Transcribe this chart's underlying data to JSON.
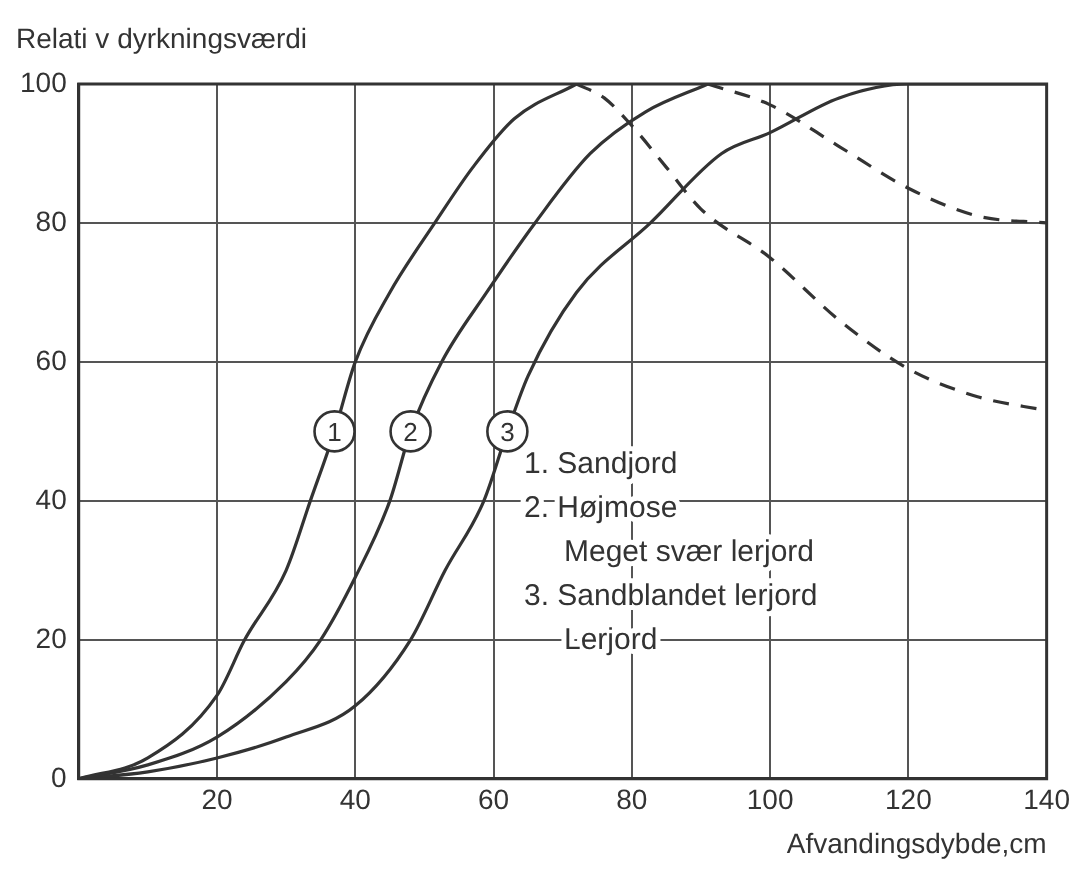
{
  "chart_data": {
    "type": "line",
    "ylabel": "Relati v dyrkningsværdi",
    "xlabel": "Afvandingsdybde,cm",
    "xlim": [
      0,
      140
    ],
    "xticks": [
      20,
      40,
      60,
      80,
      100,
      120,
      140
    ],
    "ylim": [
      0,
      100
    ],
    "yticks": [
      0,
      20,
      40,
      60,
      80,
      100
    ],
    "grid": true,
    "legend": false,
    "marker": "none",
    "series": [
      {
        "name": "1",
        "color": "#333333",
        "line_style": "solid",
        "x": [
          0,
          10,
          20,
          24,
          30,
          33.5,
          37,
          40,
          45,
          51.5,
          57,
          63,
          72
        ],
        "values": [
          0,
          3,
          12,
          20,
          30,
          40,
          50,
          60,
          70,
          80,
          88,
          95,
          100
        ]
      },
      {
        "color": "#333333",
        "line_style": "dashed",
        "x": [
          72,
          76,
          80,
          85,
          90,
          100,
          110,
          120,
          130,
          140
        ],
        "values": [
          100,
          98,
          94,
          88,
          82,
          75,
          66,
          59,
          55,
          53
        ]
      },
      {
        "name": "2",
        "color": "#333333",
        "line_style": "solid",
        "x": [
          0,
          10,
          20,
          30,
          35,
          40,
          45,
          48,
          52.5,
          59,
          66,
          74,
          82,
          91
        ],
        "values": [
          0,
          2,
          6,
          14,
          20,
          29,
          40,
          50,
          60,
          70,
          80,
          90,
          96,
          100
        ]
      },
      {
        "color": "#333333",
        "line_style": "dashed",
        "x": [
          91,
          100,
          110,
          120,
          130,
          140
        ],
        "values": [
          100,
          97,
          91,
          85,
          81,
          80
        ]
      },
      {
        "name": "3",
        "color": "#333333",
        "line_style": "solid",
        "x": [
          0,
          10,
          20,
          30,
          40,
          48,
          53,
          58.6,
          62,
          65,
          72,
          82.7,
          93,
          100,
          110,
          120,
          140
        ],
        "values": [
          0,
          1,
          3,
          6,
          10.5,
          20,
          30,
          40,
          50,
          58,
          70,
          80,
          90,
          93,
          98,
          100,
          100
        ]
      }
    ],
    "annotations": [
      "1. Sandjord",
      "2. Højmose",
      "Meget svær lerjord",
      "3. Sandblandet lerjord",
      "Lerjord"
    ]
  }
}
